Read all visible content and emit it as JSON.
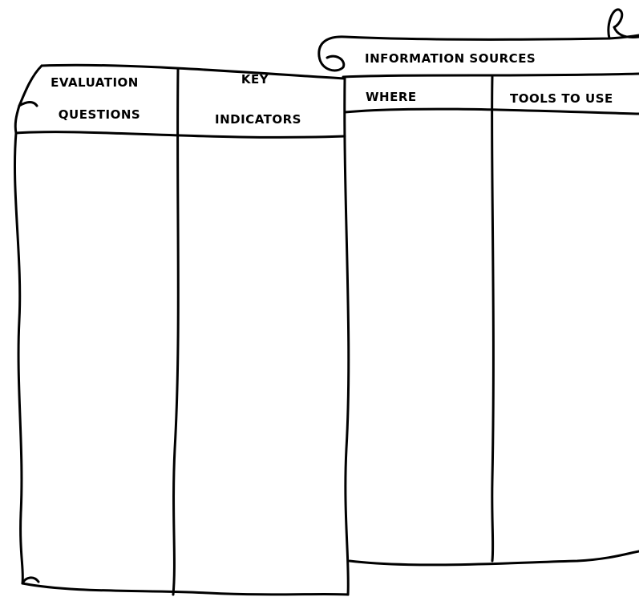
{
  "columns": [
    {
      "label_lines": [
        "EVALUATION",
        "QUESTIONS"
      ]
    },
    {
      "label_lines": [
        "KEY",
        "INDICATORS"
      ]
    }
  ],
  "group": {
    "label": "INFORMATION SOURCES",
    "subcolumns": [
      "WHERE",
      "TOOLS TO USE"
    ]
  }
}
